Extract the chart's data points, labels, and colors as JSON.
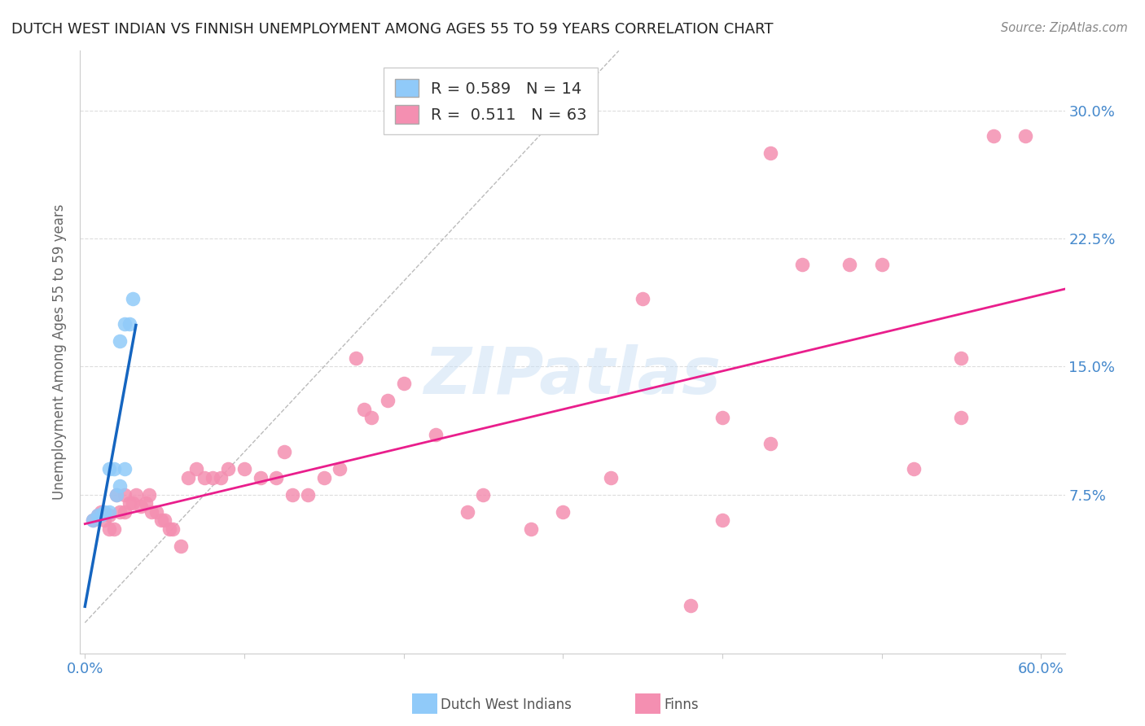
{
  "title": "DUTCH WEST INDIAN VS FINNISH UNEMPLOYMENT AMONG AGES 55 TO 59 YEARS CORRELATION CHART",
  "source": "Source: ZipAtlas.com",
  "ylabel": "Unemployment Among Ages 55 to 59 years",
  "xlim": [
    -0.003,
    0.615
  ],
  "ylim": [
    -0.018,
    0.335
  ],
  "xticks": [
    0.0,
    0.1,
    0.2,
    0.3,
    0.4,
    0.5,
    0.6
  ],
  "xticklabels": [
    "0.0%",
    "",
    "",
    "",
    "",
    "",
    "60.0%"
  ],
  "yticks": [
    0.075,
    0.15,
    0.225,
    0.3
  ],
  "yticklabels": [
    "7.5%",
    "15.0%",
    "22.5%",
    "30.0%"
  ],
  "dutch_R": 0.589,
  "dutch_N": 14,
  "finn_R": 0.511,
  "finn_N": 63,
  "dutch_color": "#90CAF9",
  "finn_color": "#F48FB1",
  "dutch_line_color": "#1565C0",
  "finn_line_color": "#E91E8C",
  "right_tick_color": "#4488CC",
  "dutch_points_x": [
    0.005,
    0.008,
    0.01,
    0.012,
    0.015,
    0.015,
    0.018,
    0.02,
    0.022,
    0.022,
    0.025,
    0.025,
    0.028,
    0.03
  ],
  "dutch_points_y": [
    0.06,
    0.063,
    0.063,
    0.065,
    0.065,
    0.09,
    0.09,
    0.075,
    0.08,
    0.165,
    0.09,
    0.175,
    0.175,
    0.19
  ],
  "finn_points_x": [
    0.005,
    0.008,
    0.01,
    0.012,
    0.015,
    0.015,
    0.018,
    0.02,
    0.022,
    0.025,
    0.025,
    0.028,
    0.03,
    0.032,
    0.035,
    0.038,
    0.04,
    0.042,
    0.045,
    0.048,
    0.05,
    0.053,
    0.055,
    0.06,
    0.065,
    0.07,
    0.075,
    0.08,
    0.085,
    0.09,
    0.1,
    0.11,
    0.12,
    0.125,
    0.13,
    0.14,
    0.15,
    0.16,
    0.17,
    0.175,
    0.18,
    0.19,
    0.2,
    0.22,
    0.24,
    0.25,
    0.28,
    0.3,
    0.33,
    0.35,
    0.38,
    0.4,
    0.43,
    0.45,
    0.48,
    0.5,
    0.52,
    0.55,
    0.57,
    0.59,
    0.4,
    0.43,
    0.55
  ],
  "finn_points_y": [
    0.06,
    0.063,
    0.065,
    0.06,
    0.063,
    0.055,
    0.055,
    0.075,
    0.065,
    0.075,
    0.065,
    0.07,
    0.07,
    0.075,
    0.068,
    0.07,
    0.075,
    0.065,
    0.065,
    0.06,
    0.06,
    0.055,
    0.055,
    0.045,
    0.085,
    0.09,
    0.085,
    0.085,
    0.085,
    0.09,
    0.09,
    0.085,
    0.085,
    0.1,
    0.075,
    0.075,
    0.085,
    0.09,
    0.155,
    0.125,
    0.12,
    0.13,
    0.14,
    0.11,
    0.065,
    0.075,
    0.055,
    0.065,
    0.085,
    0.19,
    0.01,
    0.06,
    0.105,
    0.21,
    0.21,
    0.21,
    0.09,
    0.12,
    0.285,
    0.285,
    0.12,
    0.275,
    0.155
  ],
  "watermark_text": "ZIPatlas",
  "background_color": "#ffffff",
  "grid_color": "#dddddd"
}
